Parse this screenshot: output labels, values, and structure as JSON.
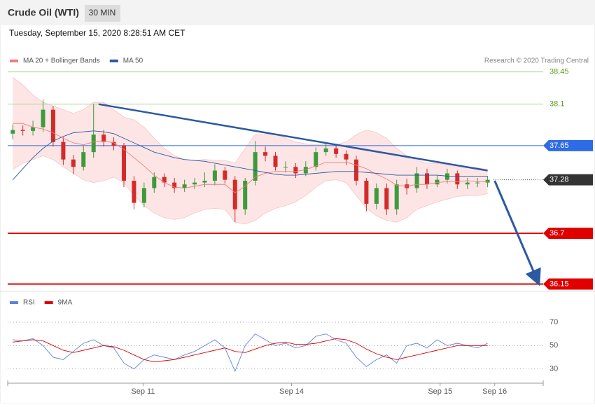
{
  "header": {
    "title": "Crude Oil (WTI)",
    "interval": "30 MIN",
    "timestamp": "Tuesday, September 15, 2020 8:28:51 AM CET",
    "credit": "Research © 2020 Trading Central"
  },
  "chart_data": [
    {
      "type": "candlestick",
      "xlim": [
        -0.5,
        52.5
      ],
      "ylim": [
        36.07,
        38.5
      ],
      "up_color": "#3d9a3d",
      "down_color": "#d42a2a",
      "open": [
        37.78,
        37.82,
        37.81,
        37.85,
        38.04,
        37.69,
        37.5,
        37.42,
        37.58,
        37.77,
        37.69,
        37.65,
        37.27,
        37.03,
        37.19,
        37.31,
        37.25,
        37.19,
        37.23,
        37.25,
        37.27,
        37.38,
        37.28,
        36.96,
        37.27,
        37.58,
        37.54,
        37.42,
        37.42,
        37.35,
        37.42,
        37.58,
        37.62,
        37.56,
        37.5,
        37.27,
        37.02,
        37.19,
        36.96,
        37.23,
        37.19,
        37.35,
        37.23,
        37.28,
        37.35,
        37.23,
        37.25,
        37.25
      ],
      "high": [
        37.88,
        37.87,
        37.92,
        38.15,
        38.08,
        37.74,
        37.55,
        37.65,
        38.1,
        37.82,
        37.74,
        37.68,
        37.32,
        37.25,
        37.36,
        37.35,
        37.3,
        37.28,
        37.3,
        37.36,
        37.45,
        37.42,
        37.32,
        37.3,
        37.7,
        37.64,
        37.58,
        37.48,
        37.46,
        37.48,
        37.63,
        37.67,
        37.66,
        37.6,
        37.54,
        37.3,
        37.24,
        37.24,
        37.28,
        37.29,
        37.42,
        37.4,
        37.33,
        37.4,
        37.38,
        37.3,
        37.3,
        37.32
      ],
      "low": [
        37.72,
        37.76,
        37.76,
        37.8,
        37.64,
        37.44,
        37.34,
        37.38,
        37.52,
        37.64,
        37.6,
        37.2,
        36.96,
        36.98,
        37.14,
        37.2,
        37.14,
        37.15,
        37.18,
        37.2,
        37.22,
        37.24,
        36.82,
        36.9,
        37.22,
        37.48,
        37.38,
        37.36,
        37.3,
        37.32,
        37.38,
        37.54,
        37.52,
        37.44,
        37.22,
        36.94,
        36.96,
        36.9,
        36.9,
        37.12,
        37.14,
        37.18,
        37.2,
        37.24,
        37.18,
        37.18,
        37.2,
        37.2
      ],
      "close": [
        37.82,
        37.81,
        37.85,
        38.04,
        37.69,
        37.5,
        37.42,
        37.58,
        37.77,
        37.69,
        37.65,
        37.27,
        37.03,
        37.19,
        37.31,
        37.25,
        37.19,
        37.23,
        37.25,
        37.27,
        37.38,
        37.28,
        36.96,
        37.27,
        37.58,
        37.54,
        37.42,
        37.42,
        37.35,
        37.42,
        37.58,
        37.62,
        37.56,
        37.5,
        37.27,
        37.02,
        37.19,
        36.96,
        37.23,
        37.19,
        37.35,
        37.23,
        37.28,
        37.35,
        37.23,
        37.25,
        37.25,
        37.28
      ],
      "series": [
        {
          "name": "MA 20 + Bollinger Bands",
          "color": "#f47c7c",
          "values": [
            37.89,
            37.89,
            37.85,
            37.83,
            37.79,
            37.73,
            37.68,
            37.66,
            37.69,
            37.7,
            37.68,
            37.61,
            37.52,
            37.43,
            37.33,
            37.25,
            37.2,
            37.19,
            37.21,
            37.23,
            37.23,
            37.23,
            37.14,
            37.21,
            37.31,
            37.35,
            37.37,
            37.37,
            37.37,
            37.39,
            37.43,
            37.47,
            37.47,
            37.47,
            37.44,
            37.4,
            37.34,
            37.29,
            37.22,
            37.21,
            37.23,
            37.23,
            37.25,
            37.26,
            37.26,
            37.27,
            37.26,
            37.26
          ],
          "upper": [
            38.39,
            38.31,
            38.2,
            38.12,
            38.08,
            38.04,
            38.0,
            38.04,
            38.12,
            38.12,
            38.04,
            37.96,
            37.93,
            37.85,
            37.73,
            37.62,
            37.54,
            37.5,
            37.49,
            37.5,
            37.49,
            37.49,
            37.46,
            37.62,
            37.77,
            37.77,
            37.77,
            37.73,
            37.69,
            37.67,
            37.66,
            37.67,
            37.66,
            37.69,
            37.77,
            37.82,
            37.79,
            37.73,
            37.62,
            37.54,
            37.49,
            37.46,
            37.46,
            37.44,
            37.42,
            37.42,
            37.41,
            37.39
          ],
          "lower": [
            37.39,
            37.46,
            37.5,
            37.54,
            37.5,
            37.42,
            37.35,
            37.28,
            37.25,
            37.27,
            37.31,
            37.25,
            37.11,
            37.0,
            36.92,
            36.87,
            36.85,
            36.87,
            36.92,
            36.96,
            36.97,
            36.96,
            36.82,
            36.8,
            36.84,
            36.92,
            36.97,
            37.0,
            37.04,
            37.11,
            37.2,
            37.27,
            37.28,
            37.25,
            37.11,
            36.97,
            36.89,
            36.84,
            36.82,
            36.87,
            36.96,
            37.0,
            37.04,
            37.07,
            37.1,
            37.11,
            37.11,
            37.13
          ]
        },
        {
          "name": "MA 50",
          "color": "#2b59a3",
          "values": [
            37.28,
            37.4,
            37.52,
            37.62,
            37.7,
            37.75,
            37.79,
            37.8,
            37.81,
            37.8,
            37.78,
            37.73,
            37.68,
            37.63,
            37.58,
            37.55,
            37.52,
            37.5,
            37.49,
            37.48,
            37.46,
            37.44,
            37.42,
            37.4,
            37.38,
            37.36,
            37.34,
            37.33,
            37.33,
            37.34,
            37.35,
            37.36,
            37.37,
            37.37,
            37.37,
            37.36,
            37.35,
            37.34,
            37.33,
            37.33,
            37.33,
            37.33,
            37.33,
            37.32,
            37.32,
            37.32,
            37.32,
            37.32
          ]
        }
      ],
      "levels": [
        {
          "value": 38.45,
          "color": "#a8d48c",
          "text_color": "#5a9e1a",
          "tag": false,
          "dotted": false
        },
        {
          "value": 38.1,
          "color": "#a8d48c",
          "text_color": "#5a9e1a",
          "tag": false,
          "dotted": false
        },
        {
          "value": 37.65,
          "color": "#2e6be6",
          "text_color": "#ffffff",
          "tag": true,
          "dotted": false
        },
        {
          "value": 37.28,
          "color": "#333333",
          "text_color": "#ffffff",
          "tag": true,
          "dotted": true
        },
        {
          "value": 36.7,
          "color": "#e00000",
          "text_color": "#ffffff",
          "tag": true,
          "dotted": false
        },
        {
          "value": 36.15,
          "color": "#e00000",
          "text_color": "#ffffff",
          "tag": true,
          "dotted": false
        }
      ],
      "trend": {
        "x": [
          8.5,
          47
        ],
        "y": [
          38.1,
          37.38
        ],
        "color": "#2b59a3"
      },
      "arrow": {
        "x": [
          47.7,
          52
        ],
        "y": [
          37.27,
          36.17
        ],
        "color": "#2b59a3"
      }
    },
    {
      "type": "rsi",
      "xlim": [
        -0.5,
        52.5
      ],
      "ylim": [
        22,
        79
      ],
      "yticks": [
        30,
        50,
        70
      ],
      "xticks": [
        {
          "value": 12.9,
          "label": "Sep 11"
        },
        {
          "value": 27.6,
          "label": "Sep 14"
        },
        {
          "value": 42.3,
          "label": "Sep 15"
        },
        {
          "value": 47.7,
          "label": "Sep 16"
        }
      ],
      "series": [
        {
          "name": "RSI",
          "color": "#5b82e0",
          "values": [
            55,
            54,
            56,
            50,
            40,
            38,
            45,
            52,
            55,
            50,
            48,
            35,
            30,
            38,
            42,
            40,
            38,
            42,
            45,
            50,
            55,
            48,
            28,
            50,
            60,
            55,
            50,
            52,
            48,
            50,
            58,
            60,
            55,
            52,
            40,
            32,
            38,
            42,
            35,
            50,
            52,
            48,
            55,
            50,
            52,
            50,
            48,
            52
          ]
        },
        {
          "name": "9MA",
          "color": "#e00000",
          "values": [
            53,
            54,
            55,
            54,
            50,
            46,
            44,
            46,
            48,
            50,
            49,
            46,
            42,
            38,
            36,
            37,
            38,
            40,
            42,
            44,
            46,
            48,
            45,
            44,
            47,
            50,
            52,
            53,
            51,
            51,
            52,
            54,
            56,
            55,
            52,
            47,
            43,
            40,
            38,
            40,
            42,
            44,
            46,
            48,
            50,
            50,
            50,
            50
          ]
        }
      ]
    }
  ]
}
